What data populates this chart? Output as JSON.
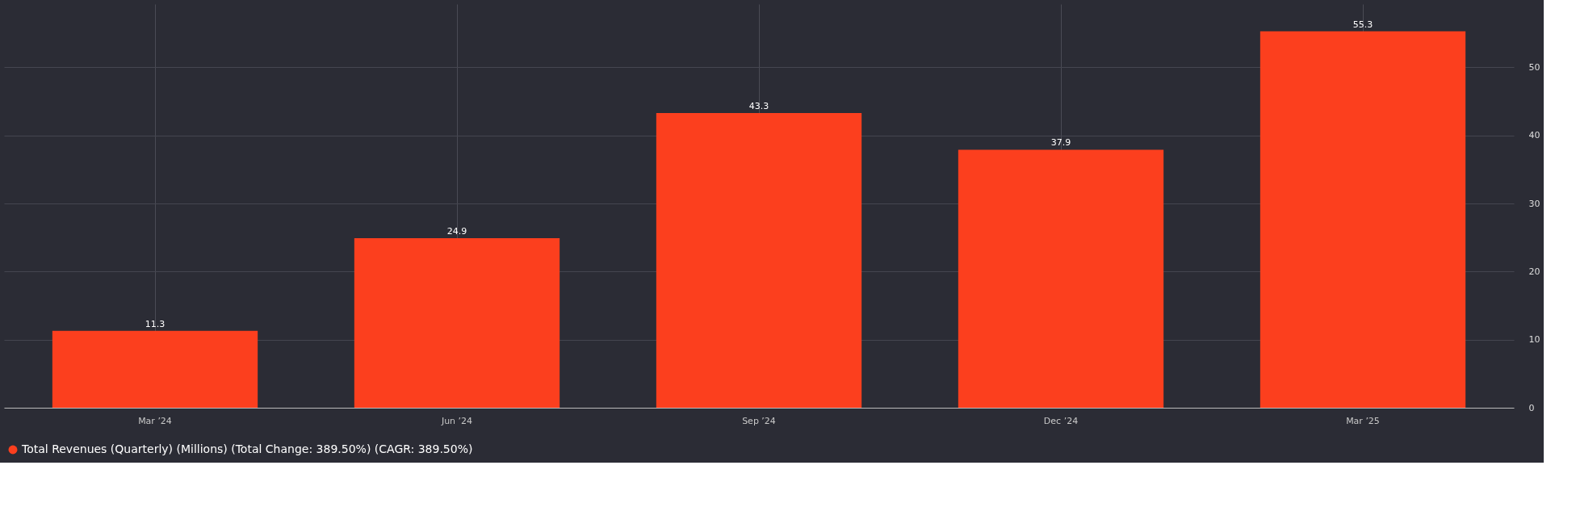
{
  "chart_data": {
    "type": "bar",
    "categories": [
      "Mar ’24",
      "Jun ’24",
      "Sep ’24",
      "Dec ’24",
      "Mar ’25"
    ],
    "series": [
      {
        "name": "Total Revenues (Quarterly) (Millions) (Total Change: 389.50%) (CAGR: 389.50%)",
        "color": "#fc3f1e",
        "values": [
          11.3,
          24.9,
          43.3,
          37.9,
          55.3
        ]
      }
    ],
    "ylim": [
      0,
      59.3
    ],
    "yticks": [
      0,
      10,
      20,
      30,
      40,
      50
    ],
    "grid": true,
    "data_labels": true,
    "legend": "bottom left"
  }
}
